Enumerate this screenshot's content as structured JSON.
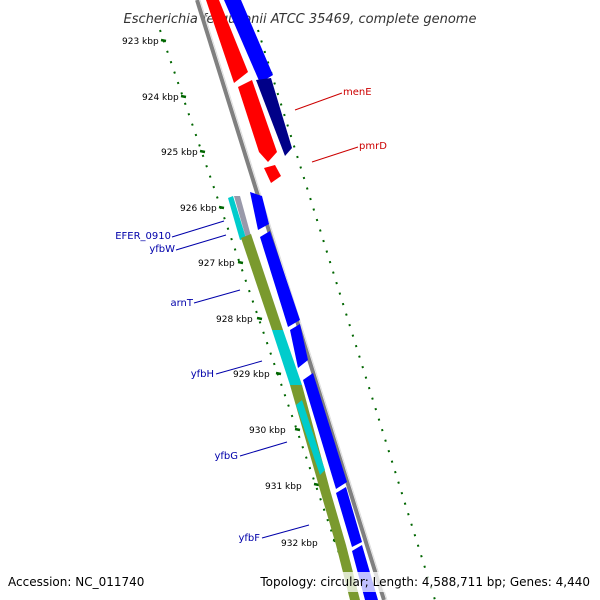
{
  "title": "Escherichia fergusonii ATCC 35469, complete genome",
  "footer": {
    "accession": "Accession: NC_011740",
    "topology": "Topology: circular; Length: 4,588,711 bp; Genes: 4,440"
  },
  "colors": {
    "forward_strand": "#0000ff",
    "reverse_strand": "#7a9a2e",
    "rna": "#00cccc",
    "other": "#ff0000",
    "backbone": "#808080",
    "scale_ticks": "#006600"
  },
  "scale": {
    "unit": "kbp",
    "labels": [
      "923 kbp",
      "924 kbp",
      "925 kbp",
      "926 kbp",
      "927 kbp",
      "928 kbp",
      "929 kbp",
      "930 kbp",
      "931 kbp",
      "932 kbp"
    ]
  },
  "gene_labels": [
    {
      "name": "menE",
      "color": "#cc0000"
    },
    {
      "name": "pmrD",
      "color": "#cc0000"
    },
    {
      "name": "EFER_0910",
      "color": "#0000aa"
    },
    {
      "name": "yfbW",
      "color": "#0000aa"
    },
    {
      "name": "arnT",
      "color": "#0000aa"
    },
    {
      "name": "yfbH",
      "color": "#0000aa"
    },
    {
      "name": "yfbG",
      "color": "#0000aa"
    },
    {
      "name": "yfbF",
      "color": "#0000aa"
    }
  ]
}
